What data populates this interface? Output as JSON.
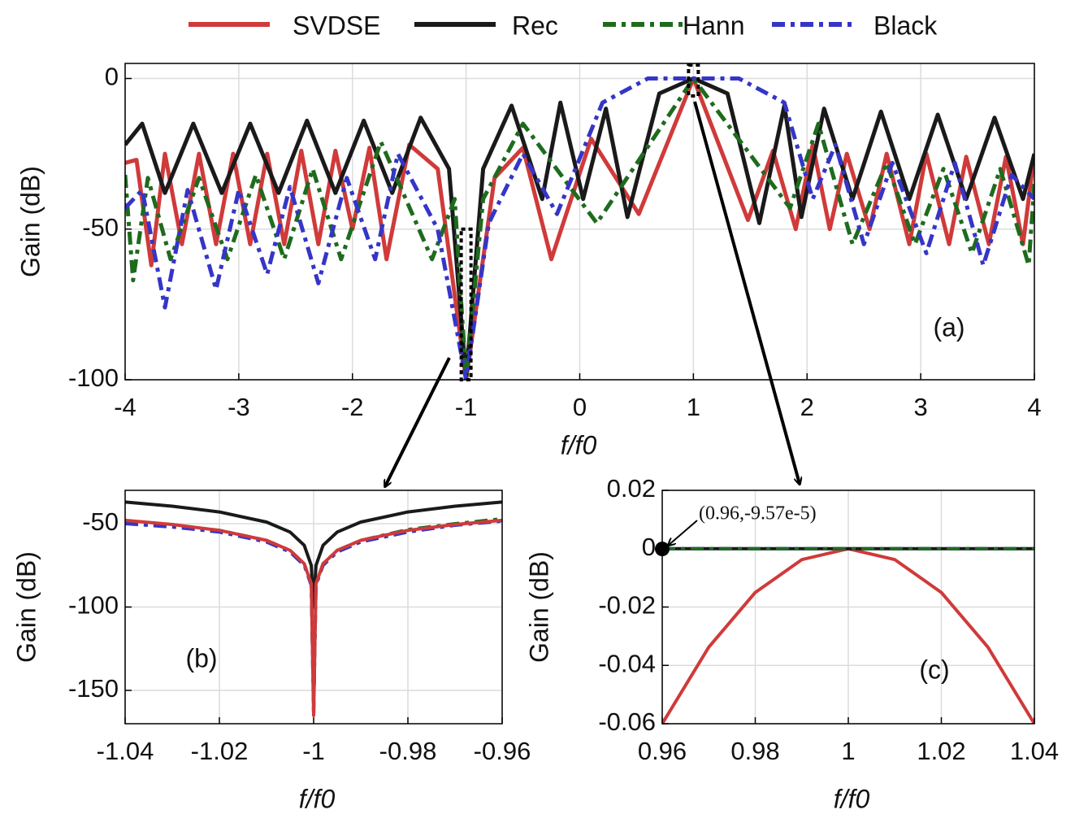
{
  "chart_data": [
    {
      "type": "line",
      "panel_label": "(a)",
      "xlabel": "f/f0",
      "ylabel": "Gain (dB)",
      "grid": true,
      "legend": "top",
      "xlim": [
        -4,
        4
      ],
      "ylim": [
        -100,
        5
      ],
      "xticks": [
        -4,
        -3,
        -2,
        -1,
        0,
        1,
        2,
        3,
        4
      ],
      "yticks": [
        -100,
        -50,
        0
      ],
      "series": [
        {
          "name": "SVDSE",
          "color": "#d03a3a",
          "style": "solid",
          "x": [
            -4,
            -3.9,
            -3.77,
            -3.65,
            -3.5,
            -3.35,
            -3.2,
            -3.05,
            -2.9,
            -2.75,
            -2.6,
            -2.45,
            -2.3,
            -2.15,
            -2.0,
            -1.85,
            -1.7,
            -1.5,
            -1.25,
            -1.0,
            -0.75,
            -0.5,
            -0.25,
            0.1,
            0.52,
            1,
            1.48,
            1.7,
            1.9,
            2.05,
            2.2,
            2.35,
            2.55,
            2.7,
            2.9,
            3.05,
            3.25,
            3.4,
            3.6,
            3.75,
            3.9,
            4
          ],
          "values": [
            -28,
            -27,
            -62,
            -25,
            -55,
            -25,
            -55,
            -25,
            -55,
            -25,
            -55,
            -24,
            -55,
            -24,
            -50,
            -23,
            -60,
            -22,
            -30,
            -100,
            -33,
            -23,
            -60,
            -20,
            -45,
            0,
            -47,
            -24,
            -50,
            -22,
            -50,
            -25,
            -50,
            -25,
            -55,
            -25,
            -55,
            -26,
            -55,
            -26,
            -55,
            -25
          ]
        },
        {
          "name": "Rec",
          "color": "#1a1a1a",
          "style": "solid",
          "x": [
            -4,
            -3.85,
            -3.65,
            -3.4,
            -3.15,
            -2.9,
            -2.65,
            -2.4,
            -2.15,
            -1.9,
            -1.65,
            -1.4,
            -1.15,
            -1.0,
            -0.85,
            -0.6,
            -0.33,
            -0.17,
            0.03,
            0.23,
            0.42,
            0.7,
            1,
            1.3,
            1.58,
            1.8,
            1.95,
            2.15,
            2.4,
            2.65,
            2.9,
            3.15,
            3.4,
            3.65,
            3.9,
            4
          ],
          "values": [
            -22,
            -15,
            -38,
            -15,
            -38,
            -15,
            -38,
            -14,
            -38,
            -14,
            -38,
            -13,
            -30,
            -100,
            -30,
            -9,
            -40,
            -8,
            -40,
            -10,
            -46,
            -5,
            0,
            -5,
            -48,
            -9,
            -46,
            -10,
            -40,
            -11,
            -40,
            -12,
            -40,
            -13,
            -40,
            -25
          ]
        },
        {
          "name": "Hann",
          "color": "#1e6b1e",
          "style": "dashdot",
          "x": [
            -4,
            -3.93,
            -3.8,
            -3.6,
            -3.35,
            -3.1,
            -2.85,
            -2.6,
            -2.35,
            -2.1,
            -1.75,
            -1.3,
            -1.1,
            -1.0,
            -0.85,
            -0.5,
            0.15,
            1,
            1.85,
            2.1,
            2.4,
            2.7,
            2.95,
            3.2,
            3.45,
            3.7,
            3.95,
            4
          ],
          "values": [
            -32,
            -67,
            -33,
            -60,
            -33,
            -60,
            -32,
            -60,
            -30,
            -60,
            -21,
            -60,
            -40,
            -100,
            -40,
            -15,
            -48,
            0,
            -43,
            -15,
            -55,
            -28,
            -55,
            -30,
            -58,
            -30,
            -62,
            -35
          ]
        },
        {
          "name": "Black",
          "color": "#3535c8",
          "style": "dashdot",
          "x": [
            -4,
            -3.85,
            -3.65,
            -3.45,
            -3.2,
            -3,
            -2.75,
            -2.55,
            -2.3,
            -2.05,
            -1.8,
            -1.6,
            -1.25,
            -1.0,
            -0.8,
            -0.5,
            -0.2,
            0.2,
            0.6,
            1,
            1.4,
            1.8,
            2.05,
            2.25,
            2.5,
            2.75,
            3.05,
            3.3,
            3.55,
            3.8,
            4
          ],
          "values": [
            -43,
            -37,
            -76,
            -37,
            -70,
            -37,
            -65,
            -36,
            -68,
            -33,
            -60,
            -25,
            -50,
            -100,
            -48,
            -25,
            -45,
            -8,
            0,
            0,
            0,
            -8,
            -40,
            -22,
            -55,
            -28,
            -58,
            -28,
            -62,
            -32,
            -40
          ]
        }
      ]
    },
    {
      "type": "line",
      "panel_label": "(b)",
      "xlabel": "f/f0",
      "ylabel": "Gain (dB)",
      "grid": true,
      "xlim": [
        -1.04,
        -0.96
      ],
      "ylim": [
        -170,
        -30
      ],
      "xticks": [
        -1.04,
        -1.02,
        -1,
        -0.98,
        -0.96
      ],
      "yticks": [
        -150,
        -100,
        -50
      ],
      "series": [
        {
          "name": "Rec",
          "color": "#1a1a1a",
          "style": "solid",
          "x": [
            -1.04,
            -1.03,
            -1.02,
            -1.01,
            -1.005,
            -1.002,
            -1.0005,
            -1,
            -0.9995,
            -0.998,
            -0.995,
            -0.99,
            -0.98,
            -0.97,
            -0.96
          ],
          "values": [
            -37,
            -39.5,
            -43,
            -49,
            -55,
            -63,
            -75,
            -100,
            -75,
            -63,
            -55,
            -49,
            -43,
            -39.5,
            -37
          ]
        },
        {
          "name": "Hann",
          "color": "#1e6b1e",
          "style": "dashdot",
          "x": [
            -1.04,
            -1.03,
            -1.02,
            -1.01,
            -1.005,
            -1.002,
            -1.0005,
            -1,
            -0.9995,
            -0.998,
            -0.995,
            -0.99,
            -0.98,
            -0.97,
            -0.96
          ],
          "values": [
            -49,
            -51,
            -54,
            -60,
            -66,
            -74,
            -86,
            -165,
            -86,
            -74,
            -66,
            -60,
            -53.5,
            -50,
            -47
          ]
        },
        {
          "name": "Black",
          "color": "#3535c8",
          "style": "dashdot",
          "x": [
            -1.04,
            -1.03,
            -1.02,
            -1.01,
            -1.005,
            -1.002,
            -1.0005,
            -1,
            -0.9995,
            -0.998,
            -0.995,
            -0.99,
            -0.98,
            -0.97,
            -0.96
          ],
          "values": [
            -50,
            -52,
            -55,
            -61,
            -67,
            -75,
            -87,
            -165,
            -87,
            -75,
            -67,
            -61,
            -55,
            -51,
            -48.5
          ]
        },
        {
          "name": "SVDSE",
          "color": "#d03a3a",
          "style": "solid",
          "x": [
            -1.04,
            -1.03,
            -1.02,
            -1.01,
            -1.005,
            -1.002,
            -1.0005,
            -1,
            -0.9995,
            -0.998,
            -0.995,
            -0.99,
            -0.98,
            -0.97,
            -0.96
          ],
          "values": [
            -48,
            -50.5,
            -54,
            -60,
            -66,
            -74,
            -86,
            -165,
            -86,
            -74,
            -66,
            -60,
            -54,
            -50.5,
            -48
          ]
        }
      ]
    },
    {
      "type": "line",
      "panel_label": "(c)",
      "xlabel": "f/f0",
      "ylabel": "Gain (dB)",
      "grid": true,
      "xlim": [
        0.96,
        1.04
      ],
      "ylim": [
        -0.06,
        0.02
      ],
      "xticks": [
        0.96,
        0.98,
        1,
        1.02,
        1.04
      ],
      "yticks": [
        -0.06,
        -0.04,
        -0.02,
        0,
        0.02
      ],
      "annotation": {
        "text": "(0.96,-9.57e-5)",
        "x": 0.96,
        "y": -9.57e-05
      },
      "series": [
        {
          "name": "SVDSE",
          "color": "#d03a3a",
          "style": "solid",
          "x": [
            0.96,
            0.97,
            0.98,
            0.99,
            1,
            1.01,
            1.02,
            1.03,
            1.04
          ],
          "values": [
            -0.06,
            -0.03375,
            -0.015,
            -0.00375,
            0,
            -0.00375,
            -0.015,
            -0.03375,
            -0.06
          ]
        },
        {
          "name": "Rec",
          "color": "#1a1a1a",
          "style": "solid",
          "x": [
            0.96,
            1,
            1.04
          ],
          "values": [
            0,
            0,
            0
          ]
        },
        {
          "name": "Black",
          "color": "#3535c8",
          "style": "dashdot",
          "x": [
            0.96,
            1,
            1.04
          ],
          "values": [
            0,
            0,
            0
          ]
        },
        {
          "name": "Hann",
          "color": "#1e6b1e",
          "style": "dashdot",
          "x": [
            0.96,
            1,
            1.04
          ],
          "values": [
            0,
            0,
            0
          ]
        }
      ]
    }
  ]
}
